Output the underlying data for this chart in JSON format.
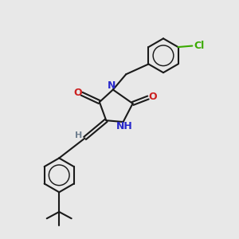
{
  "background_color": "#e8e8e8",
  "bond_color": "#1a1a1a",
  "N_color": "#2828cc",
  "O_color": "#cc2020",
  "Cl_color": "#3aaa00",
  "H_color": "#708090",
  "line_width": 1.5,
  "figsize": [
    3.0,
    3.0
  ],
  "dpi": 100,
  "xlim": [
    0,
    10
  ],
  "ylim": [
    0,
    10
  ]
}
